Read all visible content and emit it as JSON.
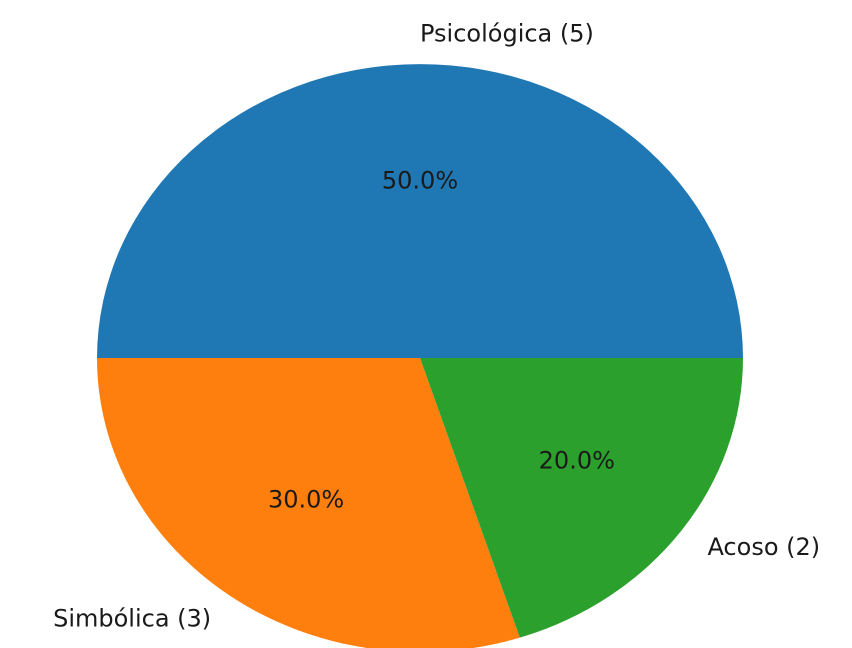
{
  "chart_data": {
    "type": "pie",
    "categories": [
      "Psicológica (5)",
      "Simbólica (3)",
      "Acoso (2)"
    ],
    "values": [
      50,
      30,
      20
    ],
    "value_labels": [
      "50.0%",
      "30.0%",
      "20.0%"
    ],
    "colors": [
      "#1f77b4",
      "#ff7f0e",
      "#2ca02c"
    ]
  }
}
